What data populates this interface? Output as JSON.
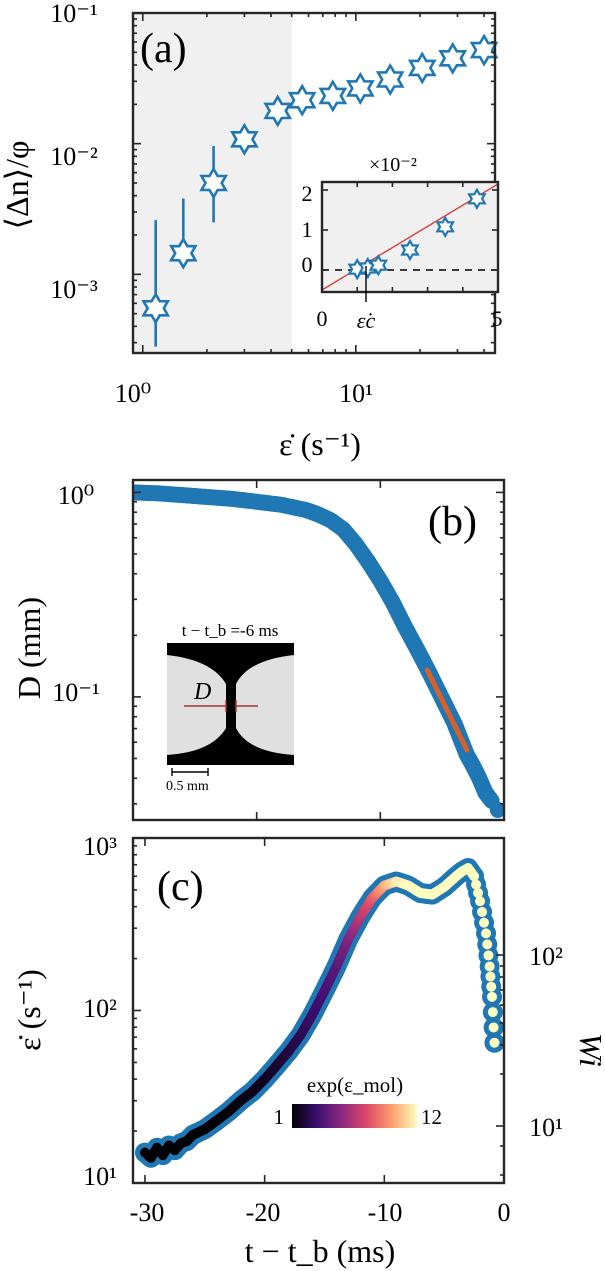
{
  "chart_data": [
    {
      "panel": "a",
      "type": "scatter",
      "panel_label": "(a)",
      "xlabel": "ε̇ (s⁻¹)",
      "ylabel": "⟨Δn⟩/φ",
      "xscale": "log",
      "yscale": "log",
      "xlim": [
        0.9,
        45
      ],
      "ylim": [
        0.00025,
        0.1
      ],
      "x_ticks": [
        1,
        10
      ],
      "x_tick_labels": [
        "10⁰",
        "10¹"
      ],
      "y_ticks": [
        0.001,
        0.01,
        0.1
      ],
      "y_tick_labels": [
        "10⁻³",
        "10⁻²",
        "10⁻¹"
      ],
      "shaded_region_x": [
        0.9,
        5
      ],
      "marker": "hexagram",
      "color": "#1f77b4",
      "x": [
        1.15,
        1.55,
        2.15,
        3.0,
        4.3,
        5.6,
        7.8,
        10.5,
        14.5,
        20.5,
        28.5,
        40.0
      ],
      "y": [
        0.00055,
        0.00145,
        0.005,
        0.0108,
        0.0178,
        0.0215,
        0.0232,
        0.0265,
        0.031,
        0.038,
        0.045,
        0.052
      ],
      "y_err_low": [
        0.00028,
        0.0014,
        0.0025,
        0.0088,
        0.0155,
        0.0195,
        0.0212,
        0.0235,
        0.0285,
        0.0345,
        0.0415,
        0.0485
      ],
      "y_err_high": [
        0.0026,
        0.0038,
        0.0096,
        0.0132,
        0.0205,
        0.0235,
        0.0255,
        0.029,
        0.0335,
        0.0415,
        0.0485,
        0.0555
      ],
      "inset": {
        "type": "scatter",
        "xlim": [
          0,
          5
        ],
        "ylim": [
          -0.55,
          2.2
        ],
        "x_tick_labels": [
          "0",
          "5"
        ],
        "y_tick_labels": [
          "0",
          "1",
          "2"
        ],
        "y_multiplier": "×10⁻²",
        "x_critical_label": "ε̇c",
        "x_critical": 1.0,
        "x": [
          1.0,
          1.3,
          1.6,
          2.5,
          3.5,
          4.4
        ],
        "y": [
          0.02,
          0.05,
          0.12,
          0.5,
          1.08,
          1.78
        ],
        "fit_line": {
          "x": [
            0,
            5
          ],
          "y": [
            -0.5,
            2.15
          ],
          "color": "#d94040"
        },
        "zero_line": "dashed"
      }
    },
    {
      "panel": "b",
      "type": "scatter",
      "panel_label": "(b)",
      "xlabel": "",
      "ylabel": "D (mm)",
      "yscale": "log",
      "xlim": [
        -30,
        0
      ],
      "ylim": [
        0.025,
        1.15
      ],
      "y_ticks": [
        0.1,
        1
      ],
      "y_tick_labels": [
        "10⁻¹",
        "10⁰"
      ],
      "color": "#1f77b4",
      "x": [
        -30,
        -28,
        -26,
        -24,
        -22,
        -20,
        -18,
        -16,
        -15,
        -14,
        -13,
        -12,
        -11,
        -10,
        -9,
        -8,
        -7,
        -6,
        -5,
        -4,
        -3.5,
        -3,
        -2.5,
        -2,
        -1.5,
        -1,
        -0.5
      ],
      "y": [
        1.0,
        0.99,
        0.97,
        0.95,
        0.93,
        0.9,
        0.87,
        0.82,
        0.78,
        0.73,
        0.66,
        0.56,
        0.46,
        0.37,
        0.29,
        0.22,
        0.17,
        0.13,
        0.098,
        0.074,
        0.062,
        0.052,
        0.046,
        0.04,
        0.034,
        0.031,
        0.028
      ],
      "fit": {
        "x": [
          -6.2,
          -3.0
        ],
        "y": [
          0.135,
          0.055
        ],
        "color": "#d9602b"
      },
      "inset": {
        "title": "t − t_b =-6 ms",
        "diameter_label": "D",
        "scale_bar_label": "0.5 mm"
      }
    },
    {
      "panel": "c",
      "type": "scatter",
      "panel_label": "(c)",
      "xlabel": "t − t_b (ms)",
      "ylabel": "ε̇ (s⁻¹)",
      "ylabel_right": "Wi",
      "yscale": "log",
      "xlim": [
        -31,
        0
      ],
      "ylim": [
        10,
        1000
      ],
      "x_ticks": [
        -30,
        -20,
        -10,
        0
      ],
      "x_tick_labels": [
        "-30",
        "-20",
        "-10",
        "0"
      ],
      "y_ticks": [
        10,
        100,
        1000
      ],
      "y_tick_labels": [
        "10¹",
        "10²",
        "10³"
      ],
      "y2_tick_labels": [
        "10¹",
        "10²"
      ],
      "colorbar": {
        "label": "exp(ε_mol)",
        "min_label": "1",
        "max_label": "12"
      },
      "outer_color": "#1f77b4",
      "x": [
        -30,
        -29.5,
        -29,
        -28.5,
        -28,
        -27.5,
        -27,
        -26.5,
        -26,
        -25,
        -24,
        -23,
        -22,
        -21,
        -20,
        -19,
        -18,
        -17,
        -16,
        -15,
        -14,
        -13,
        -12,
        -11,
        -10,
        -9,
        -8,
        -7,
        -6,
        -5,
        -4,
        -3.5,
        -3,
        -2.5,
        -2,
        -1.5,
        -1.2,
        -1.0,
        -0.8
      ],
      "y": [
        15,
        14,
        16,
        14.5,
        16.5,
        15.5,
        17,
        17.5,
        19,
        20.5,
        23,
        26,
        30,
        34,
        40,
        48,
        58,
        72,
        95,
        130,
        180,
        260,
        350,
        450,
        530,
        560,
        530,
        480,
        470,
        520,
        600,
        640,
        670,
        600,
        430,
        280,
        180,
        120,
        65
      ],
      "exp_eps_mol": [
        1,
        1,
        1,
        1,
        1,
        1,
        1,
        1,
        1,
        1,
        1,
        1.1,
        1.2,
        1.4,
        1.6,
        1.9,
        2.2,
        2.6,
        3,
        3.5,
        4,
        5,
        6.5,
        8,
        10,
        11.5,
        12,
        12,
        12,
        12,
        12,
        12,
        12,
        12,
        12,
        12,
        12,
        12,
        12
      ]
    }
  ]
}
